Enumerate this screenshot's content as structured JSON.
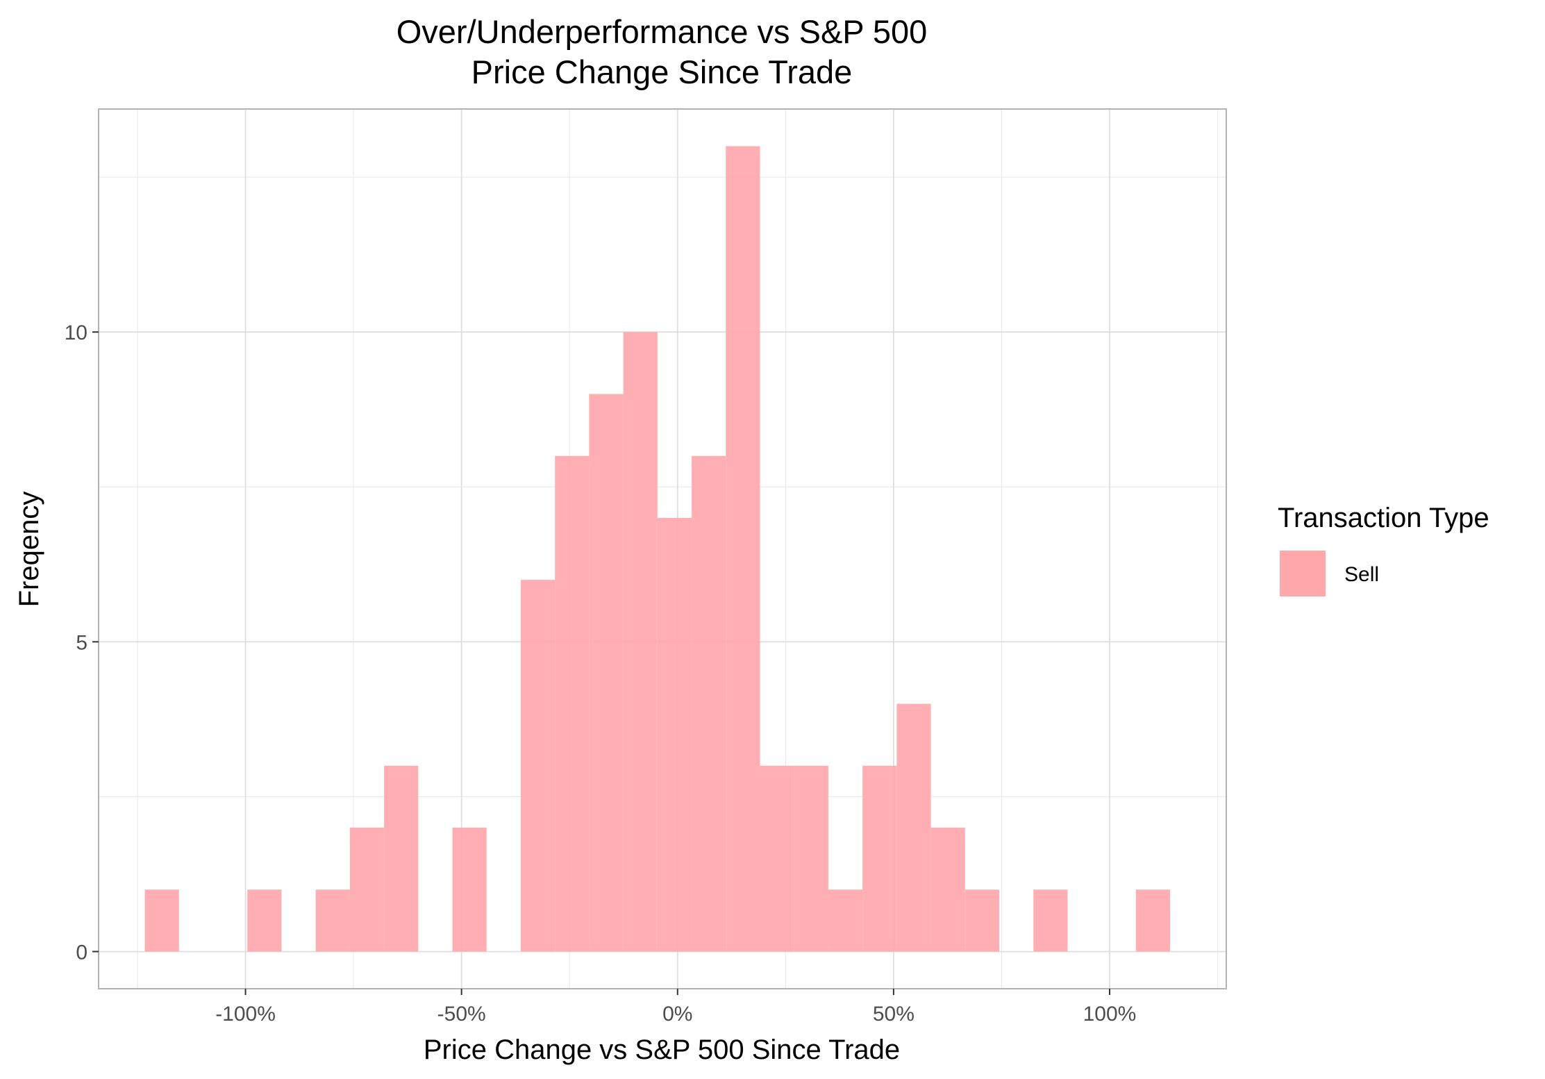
{
  "chart_data": {
    "type": "bar",
    "histogram": true,
    "title": "Over/Underperformance vs S&P 500",
    "subtitle": "Price Change Since Trade",
    "xlabel": "Price Change vs S&P 500 Since Trade",
    "ylabel": "Freqency",
    "x_tick_labels": [
      "-100%",
      "-50%",
      "0%",
      "50%",
      "100%"
    ],
    "x_ticks": [
      -100,
      -50,
      0,
      50,
      100
    ],
    "y_tick_labels": [
      "0",
      "5",
      "10"
    ],
    "y_ticks": [
      0,
      5,
      10
    ],
    "xlim": [
      -134,
      127
    ],
    "ylim": [
      -0.6,
      13.6
    ],
    "bin_width": 7.91,
    "bin_start": -123.3,
    "series": [
      {
        "name": "Sell",
        "color": "#ffa8ac",
        "values": [
          1,
          0,
          0,
          1,
          0,
          1,
          2,
          3,
          0,
          2,
          0,
          6,
          8,
          9,
          10,
          7,
          8,
          13,
          3,
          3,
          1,
          3,
          4,
          2,
          1,
          0,
          1,
          0,
          0,
          1
        ]
      }
    ],
    "legend": {
      "title": "Transaction Type",
      "position": "right",
      "items": [
        {
          "label": "Sell",
          "color": "#ffa8ac"
        }
      ]
    },
    "grid": true,
    "theme": "light"
  }
}
